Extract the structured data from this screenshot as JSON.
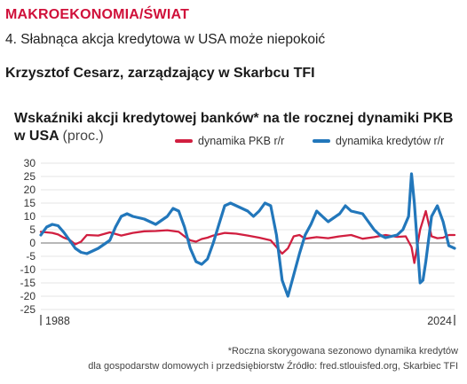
{
  "header": {
    "section": "MAKROEKONOMIA/ŚWIAT",
    "headline": "4. Słabnąca akcja kredytowa w USA może niepokoić",
    "author": "Krzysztof Cesarz, zarządzający w Skarbcu TFI"
  },
  "colors": {
    "gdp": "#d11f40",
    "loans": "#2277bb",
    "grid": "#dddddd",
    "zero": "#8c8c8c"
  },
  "chart_data": {
    "type": "line",
    "title": "Wskaźniki akcji kredytowej banków* na tle rocznej dynamiki PKB w USA",
    "unit": "(proc.)",
    "ylim": [
      -25,
      30
    ],
    "yticks": [
      30,
      25,
      20,
      15,
      10,
      5,
      0,
      -5,
      -10,
      -15,
      -20,
      -25
    ],
    "x_range": [
      1988,
      2024
    ],
    "x_labels": [
      "1988",
      "2024"
    ],
    "grid": true,
    "legend_position": "top",
    "series": [
      {
        "name": "dynamika PKB r/r",
        "x": [
          1988,
          1988.5,
          1989,
          1989.5,
          1990,
          1990.5,
          1991,
          1991.5,
          1992,
          1993,
          1994,
          1995,
          1996,
          1997,
          1998,
          1999,
          2000,
          2000.5,
          2001,
          2001.5,
          2002,
          2002.5,
          2003,
          2004,
          2005,
          2006,
          2007,
          2007.5,
          2008,
          2008.5,
          2009,
          2009.5,
          2010,
          2010.5,
          2011,
          2012,
          2013,
          2014,
          2015,
          2016,
          2017,
          2018,
          2019,
          2019.75,
          2020.25,
          2020.5,
          2021,
          2021.5,
          2022,
          2022.5,
          2023,
          2023.5,
          2024
        ],
        "y": [
          4.2,
          4.0,
          3.8,
          3.2,
          2.0,
          1.2,
          -0.5,
          0.5,
          3.0,
          2.8,
          4.0,
          2.8,
          3.8,
          4.4,
          4.5,
          4.8,
          4.2,
          2.5,
          1.0,
          0.5,
          1.5,
          2.0,
          2.8,
          3.8,
          3.5,
          2.8,
          2.0,
          1.5,
          1.0,
          -1.5,
          -4.0,
          -2.0,
          2.5,
          3.0,
          1.6,
          2.2,
          1.8,
          2.5,
          3.0,
          1.6,
          2.2,
          3.0,
          2.3,
          2.5,
          -1.5,
          -7.5,
          5.0,
          12.0,
          2.5,
          1.8,
          2.0,
          3.0,
          3.0
        ]
      },
      {
        "name": "dynamika kredytów r/r",
        "x": [
          1988,
          1988.5,
          1989,
          1989.5,
          1990,
          1990.5,
          1991,
          1991.5,
          1992,
          1992.5,
          1993,
          1994,
          1994.5,
          1995,
          1995.5,
          1996,
          1997,
          1998,
          1999,
          1999.5,
          2000,
          2000.5,
          2001,
          2001.5,
          2002,
          2002.5,
          2003,
          2003.5,
          2004,
          2004.5,
          2005,
          2006,
          2006.5,
          2007,
          2007.5,
          2008,
          2008.5,
          2009,
          2009.5,
          2010,
          2010.5,
          2011,
          2011.5,
          2012,
          2012.5,
          2013,
          2014,
          2014.5,
          2015,
          2016,
          2016.5,
          2017,
          2017.5,
          2018,
          2019,
          2019.5,
          2020,
          2020.25,
          2020.5,
          2021,
          2021.25,
          2021.5,
          2022,
          2022.5,
          2023,
          2023.5,
          2024
        ],
        "y": [
          3.0,
          6.0,
          7.0,
          6.5,
          4.0,
          1.0,
          -2.0,
          -3.5,
          -4.0,
          -3.0,
          -2.0,
          1.0,
          6.0,
          10.0,
          11.0,
          10.0,
          9.0,
          7.0,
          10.0,
          13.0,
          12.0,
          6.0,
          -2.0,
          -7.0,
          -8.0,
          -6.0,
          0.0,
          7.0,
          14.0,
          15.0,
          14.0,
          12.0,
          10.0,
          12.0,
          15.0,
          14.0,
          3.0,
          -14.0,
          -20.0,
          -12.0,
          -4.0,
          3.0,
          7.0,
          12.0,
          10.0,
          8.0,
          11.0,
          14.0,
          12.0,
          11.0,
          8.0,
          5.0,
          3.0,
          2.0,
          3.0,
          5.0,
          10.0,
          26.0,
          15.0,
          -15.0,
          -14.0,
          -7.0,
          10.0,
          14.0,
          8.0,
          -1.0,
          -2.0
        ]
      }
    ]
  },
  "footnote": {
    "line1": "*Roczna skorygowana sezonowo dynamika kredytów",
    "line2": "dla gospodarstw domowych i przedsiębiorstw Źródło: fred.stlouisfed.org, Skarbiec TFI"
  }
}
